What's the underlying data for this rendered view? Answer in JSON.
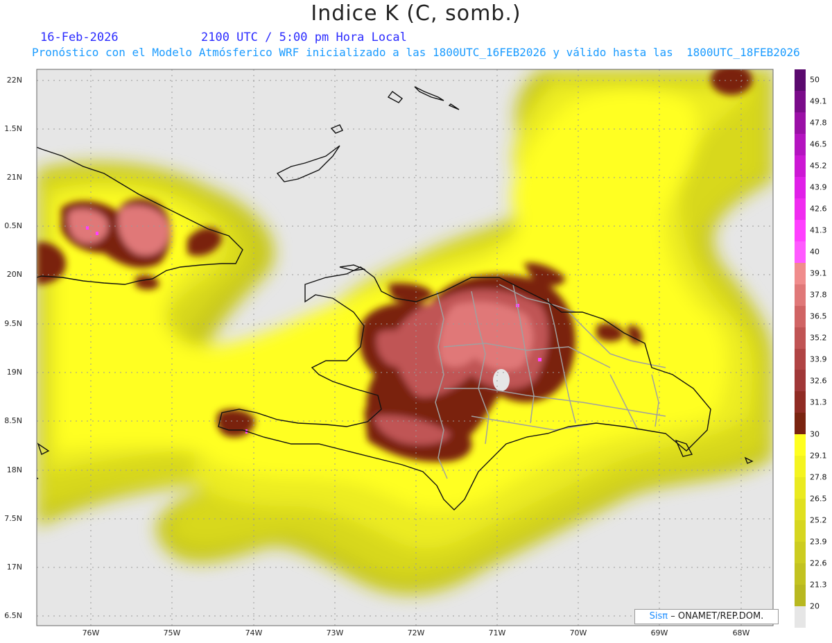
{
  "header": {
    "title": "Indice K (C, somb.)",
    "date": "16-Feb-2026",
    "time": "2100 UTC / 5:00 pm Hora Local",
    "subtitle": "Pronóstico con el Modelo Atmósferico WRF inicializado a las 1800UTC_16FEB2026 y válido hasta las  1800UTC_18FEB2026"
  },
  "axes": {
    "lat_labels": [
      "22N",
      "1.5N",
      "21N",
      "0.5N",
      "20N",
      "9.5N",
      "19N",
      "8.5N",
      "18N",
      "7.5N",
      "17N",
      "6.5N"
    ],
    "lon_labels": [
      "76W",
      "75W",
      "74W",
      "73W",
      "72W",
      "71W",
      "70W",
      "69W",
      "68W"
    ]
  },
  "colorbar": {
    "labels": [
      "50",
      "49.1",
      "47.8",
      "46.5",
      "45.2",
      "43.9",
      "42.6",
      "41.3",
      "40",
      "39.1",
      "37.8",
      "36.5",
      "35.2",
      "33.9",
      "32.6",
      "31.3",
      "30",
      "29.1",
      "27.8",
      "26.5",
      "25.2",
      "23.9",
      "22.6",
      "21.3",
      "20"
    ],
    "colors": [
      "#5a0a6e",
      "#7a0c8a",
      "#9a10a6",
      "#b414c0",
      "#cc18d4",
      "#e020e8",
      "#f02cf0",
      "#ff40ff",
      "#ff5aff",
      "#f08c8c",
      "#e07878",
      "#d06464",
      "#c05454",
      "#b04444",
      "#a03838",
      "#902c24",
      "#7a2410",
      "#ffff20",
      "#f4f420",
      "#eaea20",
      "#e0e020",
      "#d6d620",
      "#cccc20",
      "#c2c220",
      "#b8b820",
      "#e6e6e6"
    ]
  },
  "credit": {
    "brand": "Sisπ",
    "text": "– ONAMET/REP.DOM."
  }
}
